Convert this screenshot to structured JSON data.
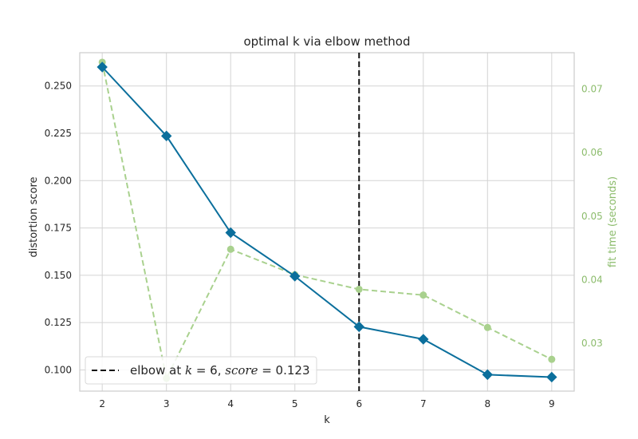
{
  "chart_data": {
    "type": "line",
    "title": "optimal k via elbow method",
    "xlabel": "k",
    "ylabel": "distortion score",
    "y2label": "fit time (seconds)",
    "x": [
      2,
      3,
      4,
      5,
      6,
      7,
      8,
      9
    ],
    "xticks": [
      "2",
      "3",
      "4",
      "5",
      "6",
      "7",
      "8",
      "9"
    ],
    "xlim": [
      1.65,
      9.35
    ],
    "ylim": [
      0.0888,
      0.2676
    ],
    "y2lim": [
      0.0225,
      0.0757
    ],
    "yticks": [
      0.1,
      0.125,
      0.15,
      0.175,
      0.2,
      0.225,
      0.25
    ],
    "yticklabels": [
      "0.100",
      "0.125",
      "0.150",
      "0.175",
      "0.200",
      "0.225",
      "0.250"
    ],
    "y2ticks": [
      0.03,
      0.04,
      0.05,
      0.06,
      0.07
    ],
    "y2ticklabels": [
      "0.03",
      "0.04",
      "0.05",
      "0.06",
      "0.07"
    ],
    "grid": true,
    "series": [
      {
        "key": "distortion",
        "axis": "left",
        "color": "#0b6f9c",
        "style": "solid",
        "marker": "diamond",
        "values": [
          0.26,
          0.2236,
          0.1725,
          0.1495,
          0.1228,
          0.1162,
          0.0975,
          0.0962
        ]
      },
      {
        "key": "fit_time",
        "axis": "right",
        "color": "#a9d18e",
        "style": "dashed",
        "marker": "circle",
        "values": [
          0.0742,
          0.0245,
          0.0448,
          0.0408,
          0.0385,
          0.0376,
          0.0325,
          0.0275
        ]
      }
    ],
    "elbow": {
      "k": 6,
      "score": 0.123,
      "color": "#111111"
    },
    "legend": {
      "position": "bottom-left",
      "label": "elbow at k = 6, score = 0.123",
      "prefix": "elbow at ",
      "k_var": "k",
      "k_eq": " = 6, ",
      "score_var": "score",
      "score_eq": " = 0.123"
    }
  }
}
